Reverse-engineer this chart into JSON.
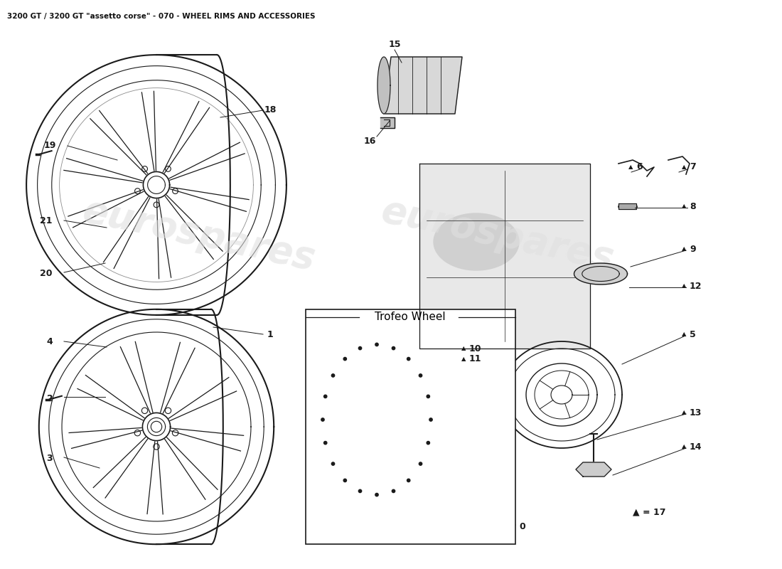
{
  "title": "3200 GT / 3200 GT \"assetto corse\" - 070 - WHEEL RIMS AND ACCESSORIES",
  "title_fontsize": 7.5,
  "bg_color": "#ffffff",
  "watermark1": "eurospares",
  "watermark2": "eurospares",
  "watermark_color": "#e0e0e0",
  "trofeo_label": "Trofeo Wheel",
  "line_color": "#1a1a1a",
  "label_fontsize": 9,
  "triangle_labels": [
    "5",
    "6",
    "7",
    "8",
    "9",
    "10",
    "11",
    "12",
    "13",
    "14"
  ]
}
